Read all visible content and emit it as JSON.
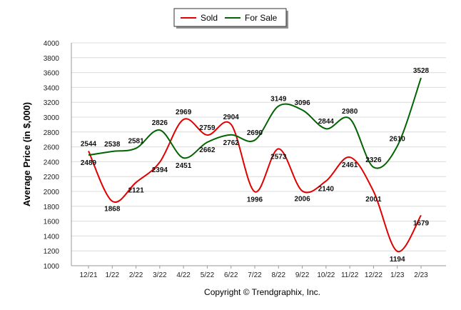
{
  "chart_data": {
    "type": "line",
    "ylabel": "Average Price (in $,000)",
    "ylim": [
      1000,
      4000
    ],
    "ytick_step": 200,
    "grid": true,
    "legend_position": "top-center",
    "categories": [
      "12/21",
      "1/22",
      "2/22",
      "3/22",
      "4/22",
      "5/22",
      "6/22",
      "7/22",
      "8/22",
      "9/22",
      "10/22",
      "11/22",
      "12/22",
      "1/23",
      "2/23"
    ],
    "series": [
      {
        "name": "Sold",
        "color": "#e00000",
        "values": [
          2544,
          1868,
          2121,
          2394,
          2969,
          2759,
          2904,
          1996,
          2573,
          2006,
          2140,
          2461,
          2001,
          1194,
          1679
        ]
      },
      {
        "name": "For Sale",
        "color": "#006400",
        "values": [
          2489,
          2538,
          2581,
          2826,
          2451,
          2662,
          2762,
          2690,
          3149,
          3096,
          2844,
          2980,
          2326,
          2610,
          3528
        ]
      }
    ],
    "footer": "Copyright © Trendgraphix, Inc."
  }
}
